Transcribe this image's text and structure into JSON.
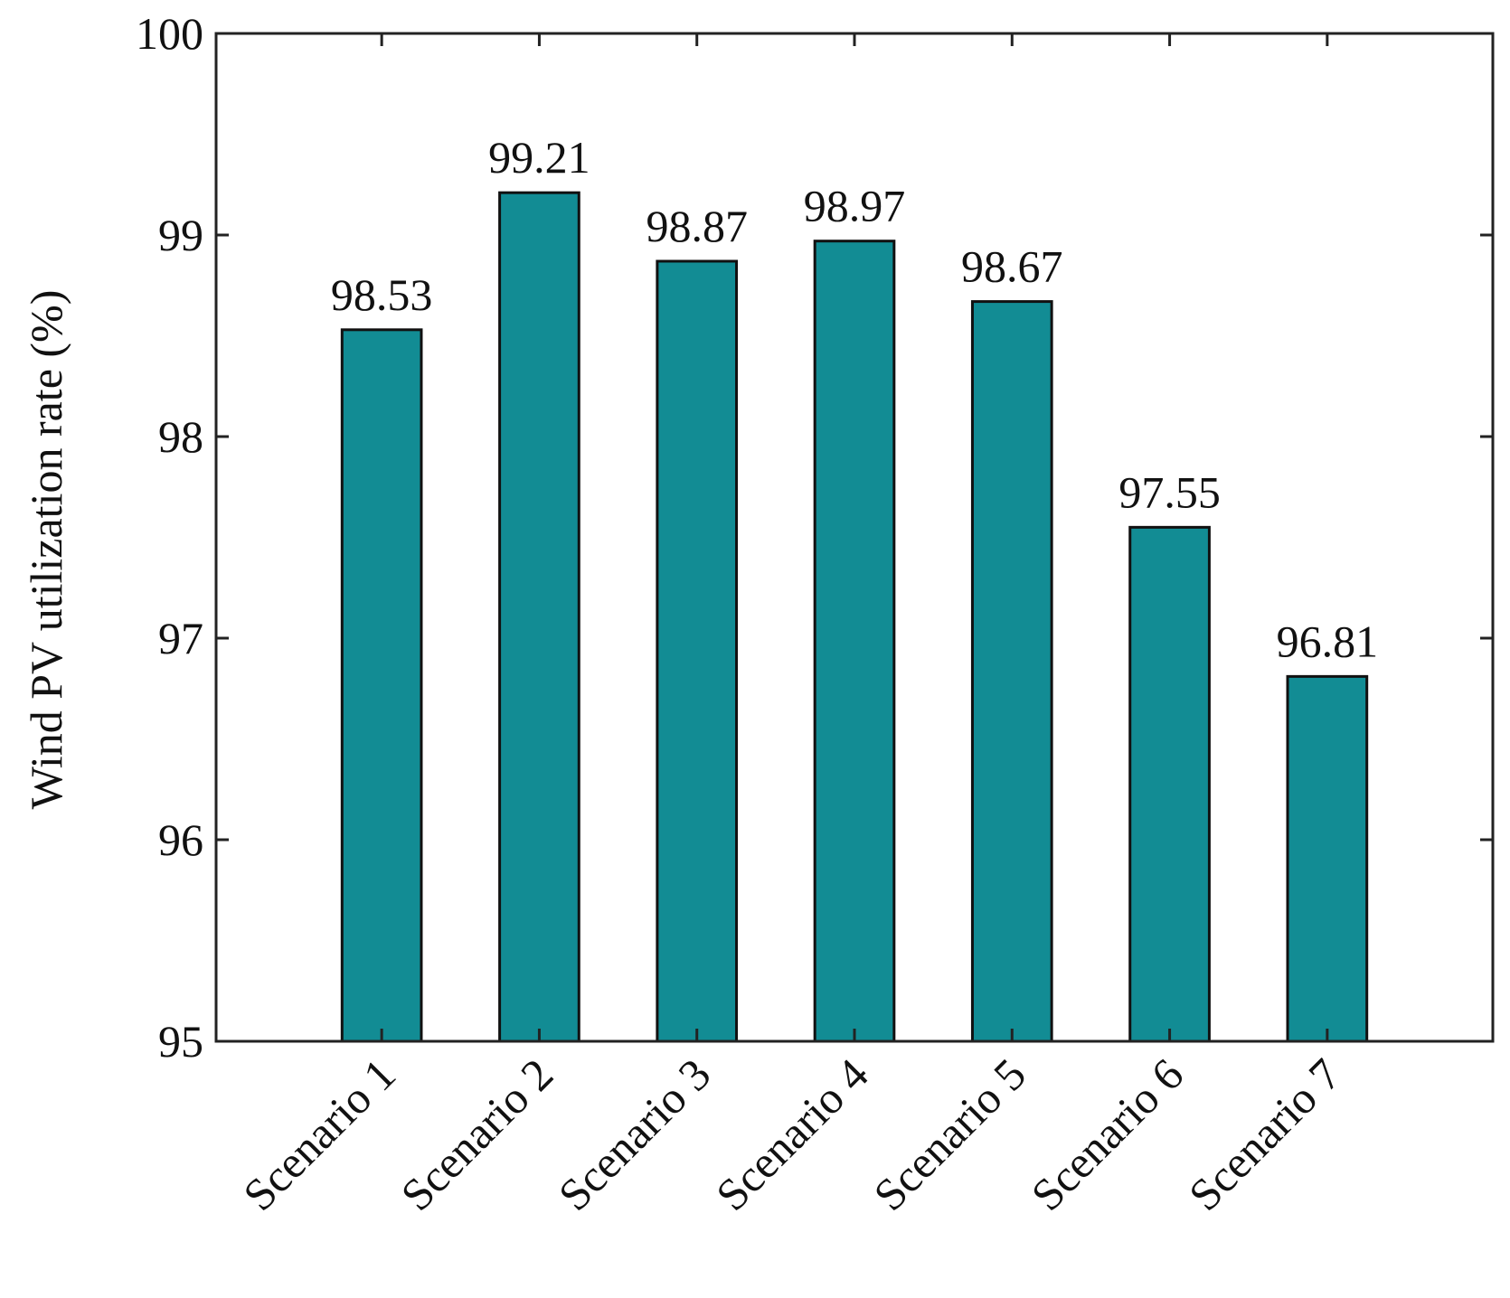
{
  "chart_data": {
    "type": "bar",
    "y_label": "Wind PV utilization rate (%)",
    "categories": [
      "Scenario 1",
      "Scenario 2",
      "Scenario 3",
      "Scenario 4",
      "Scenario 5",
      "Scenario 6",
      "Scenario 7"
    ],
    "values": [
      98.53,
      99.21,
      98.87,
      98.97,
      98.67,
      97.55,
      96.81
    ],
    "color": "#128c94",
    "ylim": [
      95,
      100
    ],
    "yticks": [
      95,
      96,
      97,
      98,
      99,
      100
    ],
    "grid": false
  }
}
